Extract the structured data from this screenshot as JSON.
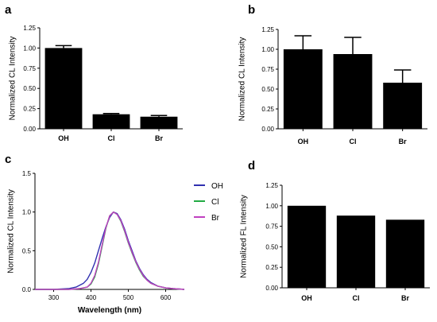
{
  "chart_data": [
    {
      "panel": "a",
      "type": "bar",
      "categories": [
        "OH",
        "Cl",
        "Br"
      ],
      "values": [
        1.0,
        0.18,
        0.15
      ],
      "error": [
        0.03,
        0.01,
        0.015
      ],
      "ylabel": "Normalized CL Intensity",
      "xlabel": "",
      "ylim": [
        0,
        1.25
      ],
      "yticks": [
        "0.00",
        "0.25",
        "0.50",
        "0.75",
        "1.00",
        "1.25"
      ],
      "grid": false
    },
    {
      "panel": "b",
      "type": "bar",
      "categories": [
        "OH",
        "Cl",
        "Br"
      ],
      "values": [
        1.0,
        0.94,
        0.58
      ],
      "error": [
        0.17,
        0.21,
        0.16
      ],
      "ylabel": "Normalized CL Intensity",
      "xlabel": "",
      "ylim": [
        0,
        1.25
      ],
      "yticks": [
        "0.00",
        "0.25",
        "0.50",
        "0.75",
        "1.00",
        "1.25"
      ],
      "grid": false
    },
    {
      "panel": "c",
      "type": "line",
      "ylabel": "Normalized CL Intensity",
      "xlabel": "Wavelength (nm)",
      "xlim": [
        250,
        650
      ],
      "ylim": [
        0,
        1.5
      ],
      "xticks": [
        "300",
        "400",
        "500",
        "600"
      ],
      "yticks": [
        "0.0",
        "0.5",
        "1.0",
        "1.5"
      ],
      "legend_position": "right",
      "grid": false,
      "series": [
        {
          "name": "OH",
          "color": "#3030b0",
          "x": [
            250,
            300,
            340,
            360,
            380,
            390,
            400,
            410,
            420,
            430,
            440,
            450,
            460,
            470,
            480,
            490,
            500,
            510,
            520,
            530,
            540,
            550,
            560,
            580,
            600,
            620,
            650
          ],
          "y": [
            0.0,
            0.0,
            0.01,
            0.03,
            0.08,
            0.13,
            0.22,
            0.34,
            0.5,
            0.66,
            0.81,
            0.93,
            1.0,
            0.98,
            0.9,
            0.78,
            0.63,
            0.5,
            0.37,
            0.27,
            0.19,
            0.13,
            0.09,
            0.04,
            0.02,
            0.01,
            0.0
          ]
        },
        {
          "name": "Cl",
          "color": "#22aa44",
          "x": [
            250,
            340,
            370,
            390,
            400,
            410,
            420,
            430,
            440,
            450,
            460,
            470,
            480,
            490,
            500,
            510,
            520,
            530,
            540,
            550,
            560,
            580,
            600,
            620,
            650
          ],
          "y": [
            0.0,
            0.0,
            0.01,
            0.03,
            0.07,
            0.16,
            0.33,
            0.56,
            0.79,
            0.95,
            1.0,
            0.97,
            0.88,
            0.75,
            0.6,
            0.47,
            0.35,
            0.25,
            0.17,
            0.12,
            0.08,
            0.04,
            0.02,
            0.01,
            0.0
          ]
        },
        {
          "name": "Br",
          "color": "#c040c0",
          "x": [
            250,
            340,
            370,
            390,
            400,
            410,
            420,
            430,
            440,
            450,
            460,
            470,
            480,
            490,
            500,
            510,
            520,
            530,
            540,
            550,
            560,
            580,
            600,
            620,
            650
          ],
          "y": [
            0.0,
            0.0,
            0.01,
            0.03,
            0.08,
            0.18,
            0.35,
            0.58,
            0.8,
            0.95,
            1.0,
            0.97,
            0.89,
            0.76,
            0.61,
            0.48,
            0.36,
            0.26,
            0.18,
            0.12,
            0.08,
            0.04,
            0.02,
            0.01,
            0.0
          ]
        }
      ]
    },
    {
      "panel": "d",
      "type": "bar",
      "categories": [
        "OH",
        "Cl",
        "Br"
      ],
      "values": [
        1.0,
        0.88,
        0.83
      ],
      "ylabel": "Normalized FL Intensity",
      "xlabel": "",
      "ylim": [
        0,
        1.25
      ],
      "yticks": [
        "0.00",
        "0.25",
        "0.50",
        "0.75",
        "1.00",
        "1.25"
      ],
      "grid": false
    }
  ]
}
